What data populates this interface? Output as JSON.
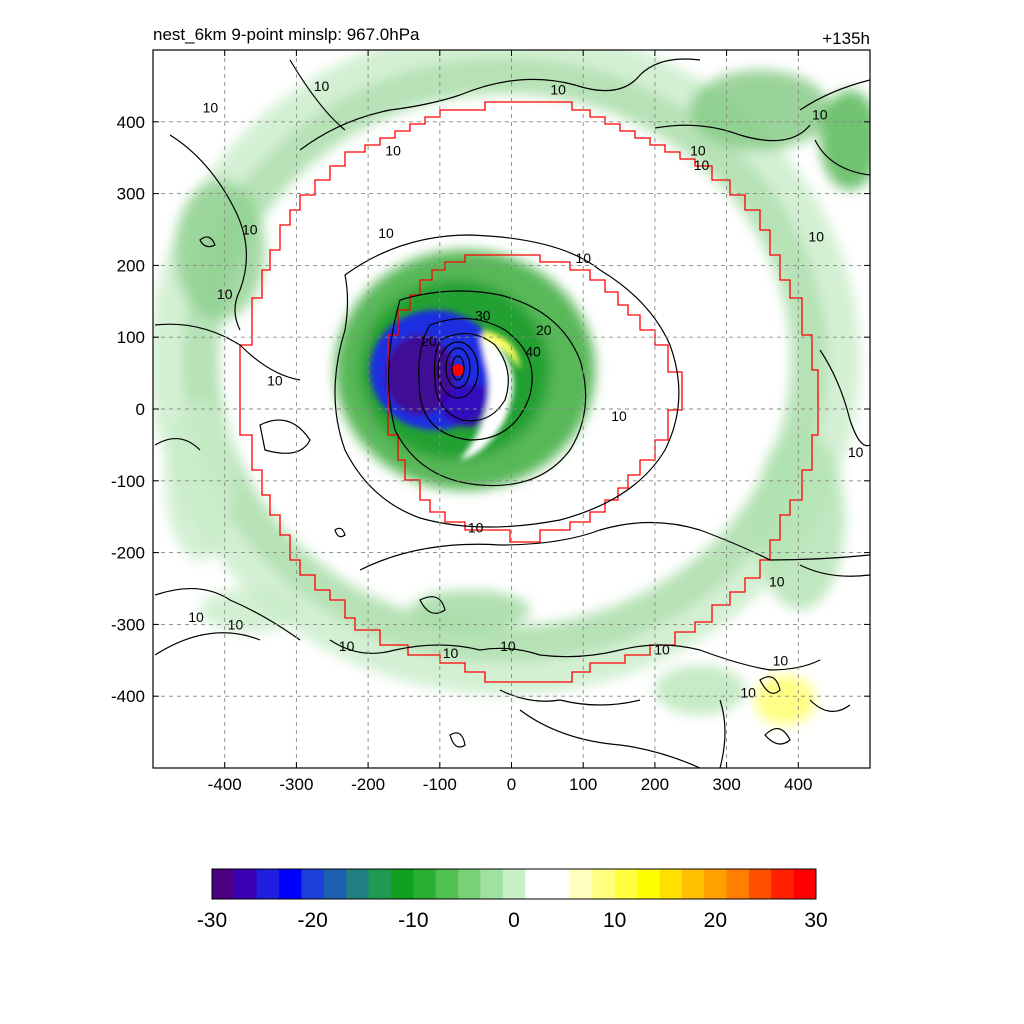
{
  "title_left": "nest_6km  9-point minslp: 967.0hPa",
  "title_right": "+135h",
  "chart_data": {
    "type": "heatmap",
    "title": "nest_6km  9-point minslp: 967.0hPa",
    "forecast_hour_label": "+135h",
    "xlim": [
      -500,
      500
    ],
    "ylim": [
      -500,
      500
    ],
    "x_ticks": [
      -400,
      -300,
      -200,
      -100,
      0,
      100,
      200,
      300,
      400
    ],
    "y_ticks": [
      400,
      300,
      200,
      100,
      0,
      -100,
      -200,
      -300,
      -400
    ],
    "grid": "dashed",
    "storm_center": {
      "x": -75,
      "y": 55
    },
    "colorbar": {
      "range": [
        -30,
        30
      ],
      "ticks": [
        -30,
        -20,
        -10,
        0,
        10,
        20,
        30
      ],
      "colors": [
        "#4b0082",
        "#3a00b4",
        "#1f1fe0",
        "#0000ff",
        "#1c3fd8",
        "#1f5fb0",
        "#207f80",
        "#1f9a50",
        "#10a020",
        "#28b030",
        "#50c050",
        "#78d078",
        "#a0e0a0",
        "#c8f0c8",
        "#ffffff",
        "#ffffff",
        "#ffffc0",
        "#ffff80",
        "#ffff40",
        "#ffff00",
        "#ffe000",
        "#ffc000",
        "#ffa000",
        "#ff8000",
        "#ff5000",
        "#ff2000",
        "#ff0000"
      ]
    },
    "contour_labels": [
      {
        "text": "10",
        "x": -420,
        "y": 420
      },
      {
        "text": "10",
        "x": -265,
        "y": 450
      },
      {
        "text": "10",
        "x": 65,
        "y": 445
      },
      {
        "text": "10",
        "x": 430,
        "y": 410
      },
      {
        "text": "10",
        "x": -165,
        "y": 360
      },
      {
        "text": "10",
        "x": 260,
        "y": 360
      },
      {
        "text": "10",
        "x": 265,
        "y": 340
      },
      {
        "text": "10",
        "x": -365,
        "y": 250
      },
      {
        "text": "10",
        "x": -175,
        "y": 245
      },
      {
        "text": "10",
        "x": 100,
        "y": 210
      },
      {
        "text": "10",
        "x": 425,
        "y": 240
      },
      {
        "text": "10",
        "x": -400,
        "y": 160
      },
      {
        "text": "10",
        "x": -330,
        "y": 40
      },
      {
        "text": "30",
        "x": -40,
        "y": 130
      },
      {
        "text": "20",
        "x": 45,
        "y": 110
      },
      {
        "text": "20",
        "x": -115,
        "y": 95
      },
      {
        "text": "40",
        "x": 30,
        "y": 80
      },
      {
        "text": "10",
        "x": 150,
        "y": -10
      },
      {
        "text": "10",
        "x": 480,
        "y": -60
      },
      {
        "text": "10",
        "x": -50,
        "y": -165
      },
      {
        "text": "10",
        "x": 370,
        "y": -240
      },
      {
        "text": "10",
        "x": -440,
        "y": -290
      },
      {
        "text": "10",
        "x": -385,
        "y": -300
      },
      {
        "text": "10",
        "x": -230,
        "y": -330
      },
      {
        "text": "10",
        "x": -85,
        "y": -340
      },
      {
        "text": "10",
        "x": -5,
        "y": -330
      },
      {
        "text": "10",
        "x": 210,
        "y": -335
      },
      {
        "text": "10",
        "x": 375,
        "y": -350
      },
      {
        "text": "10",
        "x": 330,
        "y": -395
      }
    ]
  }
}
